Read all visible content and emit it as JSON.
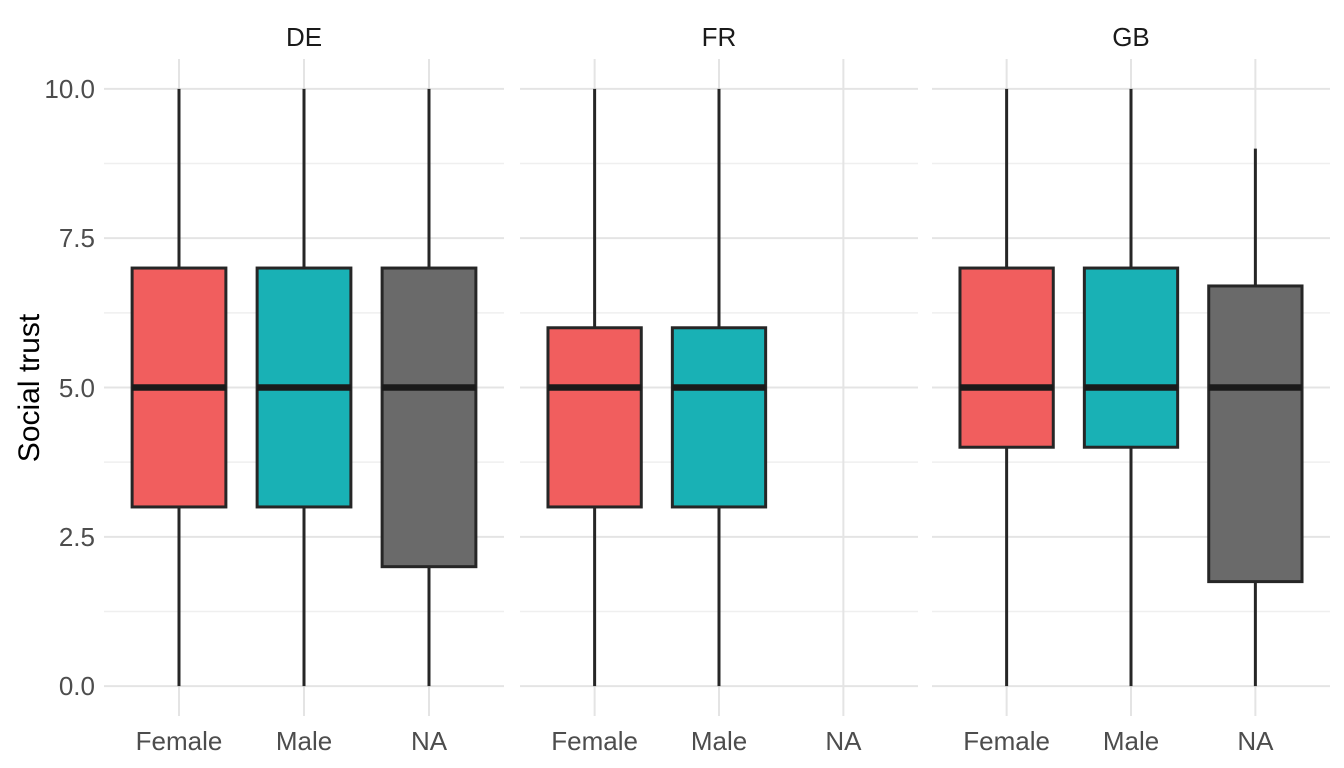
{
  "chart_data": {
    "type": "boxplot",
    "title": "",
    "ylabel": "Social trust",
    "xlabel": "",
    "ylim": [
      -0.5,
      10.5
    ],
    "yticks": [
      0.0,
      2.5,
      5.0,
      7.5,
      10.0
    ],
    "ytick_labels": [
      "0.0",
      "2.5",
      "5.0",
      "7.5",
      "10.0"
    ],
    "minor_gridlines": [
      1.25,
      3.75,
      6.25,
      8.75
    ],
    "grid": "on",
    "legend_position": "none",
    "categories": [
      "Female",
      "Male",
      "NA"
    ],
    "facets": [
      {
        "label": "DE",
        "boxes": [
          {
            "category": "Female",
            "color_key": "female",
            "min": 0,
            "q1": 3,
            "median": 5,
            "q3": 7,
            "max": 10
          },
          {
            "category": "Male",
            "color_key": "male",
            "min": 0,
            "q1": 3,
            "median": 5,
            "q3": 7,
            "max": 10
          },
          {
            "category": "NA",
            "color_key": "na",
            "min": 0,
            "q1": 2,
            "median": 5,
            "q3": 7,
            "max": 10
          }
        ]
      },
      {
        "label": "FR",
        "boxes": [
          {
            "category": "Female",
            "color_key": "female",
            "min": 0,
            "q1": 3,
            "median": 5,
            "q3": 6,
            "max": 10
          },
          {
            "category": "Male",
            "color_key": "male",
            "min": 0,
            "q1": 3,
            "median": 5,
            "q3": 6,
            "max": 10
          },
          null
        ]
      },
      {
        "label": "GB",
        "boxes": [
          {
            "category": "Female",
            "color_key": "female",
            "min": 0,
            "q1": 4,
            "median": 5,
            "q3": 7,
            "max": 10
          },
          {
            "category": "Male",
            "color_key": "male",
            "min": 0,
            "q1": 4,
            "median": 5,
            "q3": 7,
            "max": 10
          },
          {
            "category": "NA",
            "color_key": "na",
            "min": 0,
            "q1": 1.75,
            "median": 5,
            "q3": 6.7,
            "max": 9
          }
        ]
      }
    ],
    "colors": {
      "female": "#F15E5E",
      "male": "#19B1B5",
      "na": "#6A6A6A",
      "box_stroke": "#262626",
      "median_stroke": "#1A1A1A",
      "grid_major": "#E4E4E4",
      "grid_minor": "#EFEFEF",
      "axis_text": "#4D4D4D",
      "strip_text": "#1A1A1A",
      "axis_title": "#000000",
      "background": "#FFFFFF"
    }
  }
}
